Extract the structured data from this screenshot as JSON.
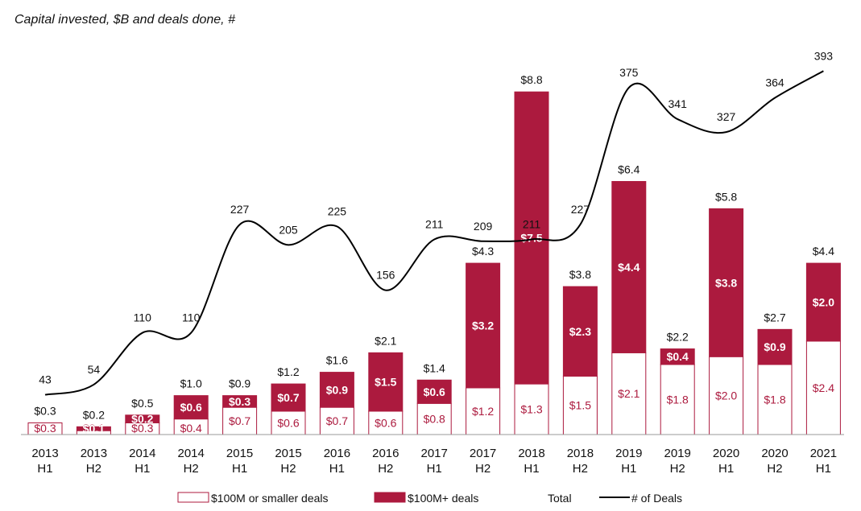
{
  "chart_data": {
    "type": "bar",
    "title": "Capital invested, $B and deals done, #",
    "categories": [
      [
        "2013",
        "H1"
      ],
      [
        "2013",
        "H2"
      ],
      [
        "2014",
        "H1"
      ],
      [
        "2014",
        "H2"
      ],
      [
        "2015",
        "H1"
      ],
      [
        "2015",
        "H2"
      ],
      [
        "2016",
        "H1"
      ],
      [
        "2016",
        "H2"
      ],
      [
        "2017",
        "H1"
      ],
      [
        "2017",
        "H2"
      ],
      [
        "2018",
        "H1"
      ],
      [
        "2018",
        "H2"
      ],
      [
        "2019",
        "H1"
      ],
      [
        "2019",
        "H2"
      ],
      [
        "2020",
        "H1"
      ],
      [
        "2020",
        "H2"
      ],
      [
        "2021",
        "H1"
      ]
    ],
    "series": [
      {
        "name": "$100M or smaller deals",
        "values": [
          0.3,
          0.1,
          0.3,
          0.4,
          0.7,
          0.6,
          0.7,
          0.6,
          0.8,
          1.2,
          1.3,
          1.5,
          2.1,
          1.8,
          2.0,
          1.8,
          2.4
        ],
        "labels": [
          "$0.3",
          "$0.1",
          "$0.3",
          "$0.4",
          "$0.7",
          "$0.6",
          "$0.7",
          "$0.6",
          "$0.8",
          "$1.2",
          "$1.3",
          "$1.5",
          "$2.1",
          "$1.8",
          "$2.0",
          "$1.8",
          "$2.4"
        ]
      },
      {
        "name": "$100M+ deals",
        "values": [
          0,
          0.1,
          0.2,
          0.6,
          0.3,
          0.7,
          0.9,
          1.5,
          0.6,
          3.2,
          7.5,
          2.3,
          4.4,
          0.4,
          3.8,
          0.9,
          2.0
        ],
        "labels": [
          "",
          "$0.1",
          "$0.2",
          "$0.6",
          "$0.3",
          "$0.7",
          "$0.9",
          "$1.5",
          "$0.6",
          "$3.2",
          "$7.5",
          "$2.3",
          "$4.4",
          "$0.4",
          "$3.8",
          "$0.9",
          "$2.0"
        ]
      },
      {
        "name": "Total",
        "values": [
          0.3,
          0.2,
          0.5,
          1.0,
          0.9,
          1.2,
          1.6,
          2.1,
          1.4,
          4.3,
          8.8,
          3.8,
          6.4,
          2.2,
          5.8,
          2.7,
          4.4
        ],
        "labels": [
          "$0.3",
          "$0.2",
          "$0.5",
          "$1.0",
          "$0.9",
          "$1.2",
          "$1.6",
          "$2.1",
          "$1.4",
          "$4.3",
          "$8.8",
          "$3.8",
          "$6.4",
          "$2.2",
          "$5.8",
          "$2.7",
          "$4.4"
        ]
      },
      {
        "name": "# of Deals",
        "values": [
          43,
          54,
          110,
          110,
          227,
          205,
          225,
          156,
          211,
          209,
          211,
          227,
          375,
          341,
          327,
          364,
          393
        ]
      }
    ],
    "ylim": [
      0,
      9.3
    ],
    "y2lim": [
      0,
      435
    ],
    "legend_position": "bottom",
    "colors": {
      "small": "#ffffff",
      "large": "#ac1a3e",
      "edge": "#ac1a3e",
      "line": "#000000",
      "small_label": "#ac1a3e",
      "large_label": "#ffffff"
    }
  }
}
